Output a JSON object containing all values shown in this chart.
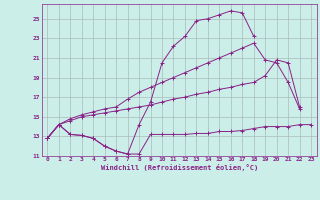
{
  "bg_color": "#cceee8",
  "grid_color": "#aabbbb",
  "line_color": "#882288",
  "marker": "+",
  "xlabel": "Windchill (Refroidissement éolien,°C)",
  "xlim": [
    -0.5,
    23.5
  ],
  "ylim": [
    11,
    26.5
  ],
  "yticks": [
    11,
    13,
    15,
    17,
    19,
    21,
    23,
    25
  ],
  "xticks": [
    0,
    1,
    2,
    3,
    4,
    5,
    6,
    7,
    8,
    9,
    10,
    11,
    12,
    13,
    14,
    15,
    16,
    17,
    18,
    19,
    20,
    21,
    22,
    23
  ],
  "series": [
    [
      12.8,
      14.2,
      13.2,
      13.1,
      12.8,
      12.0,
      11.5,
      11.2,
      11.2,
      13.2,
      13.2,
      13.2,
      13.2,
      13.3,
      13.3,
      13.5,
      13.5,
      13.6,
      13.8,
      14.0,
      14.0,
      14.0,
      14.2,
      14.2
    ],
    [
      12.8,
      14.2,
      13.2,
      13.1,
      12.8,
      12.0,
      11.5,
      11.2,
      14.2,
      16.5,
      20.5,
      22.2,
      23.2,
      24.8,
      25.0,
      25.4,
      25.8,
      25.6,
      23.2,
      null,
      null,
      null,
      null,
      null
    ],
    [
      12.8,
      14.2,
      14.8,
      15.2,
      15.5,
      15.8,
      16.0,
      16.8,
      17.5,
      18.0,
      18.5,
      19.0,
      19.5,
      20.0,
      20.5,
      21.0,
      21.5,
      22.0,
      22.5,
      20.8,
      20.5,
      18.5,
      15.8,
      null
    ],
    [
      12.8,
      14.2,
      14.6,
      15.0,
      15.2,
      15.4,
      15.6,
      15.8,
      16.0,
      16.2,
      16.5,
      16.8,
      17.0,
      17.3,
      17.5,
      17.8,
      18.0,
      18.3,
      18.5,
      19.2,
      20.8,
      20.5,
      16.0,
      null
    ]
  ]
}
